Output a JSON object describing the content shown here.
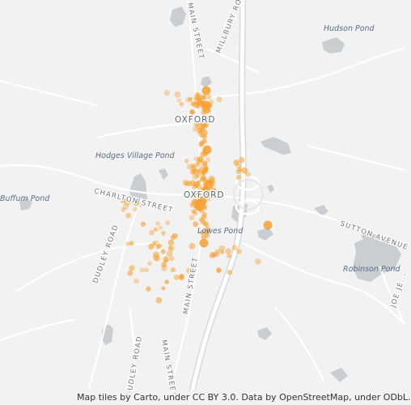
{
  "map": {
    "places": {
      "town": "OXFORD"
    },
    "water": {
      "hudson_pond": "Hudson Pond",
      "hodges_village_pond": "Hodges Village Pond",
      "buffum_pond": "Buffum Pond",
      "lowes_pond": "Lowes Pond",
      "robinson_pond": "Robinson Pond"
    },
    "roads": {
      "main_street": "MAIN STREET",
      "millbury_road": "MILLBURY RO...",
      "charlton_street": "CHARLTON STREET",
      "sutton_avenue": "SUTTON AVENUE",
      "dudley_road": "DUDLEY ROAD",
      "joe_jenny_road": "JOE JE..."
    },
    "heatmap_color": "#f5a030",
    "attribution": "Map tiles by Carto, under CC BY 3.0. Data by OpenStreetMap, under ODbL."
  }
}
